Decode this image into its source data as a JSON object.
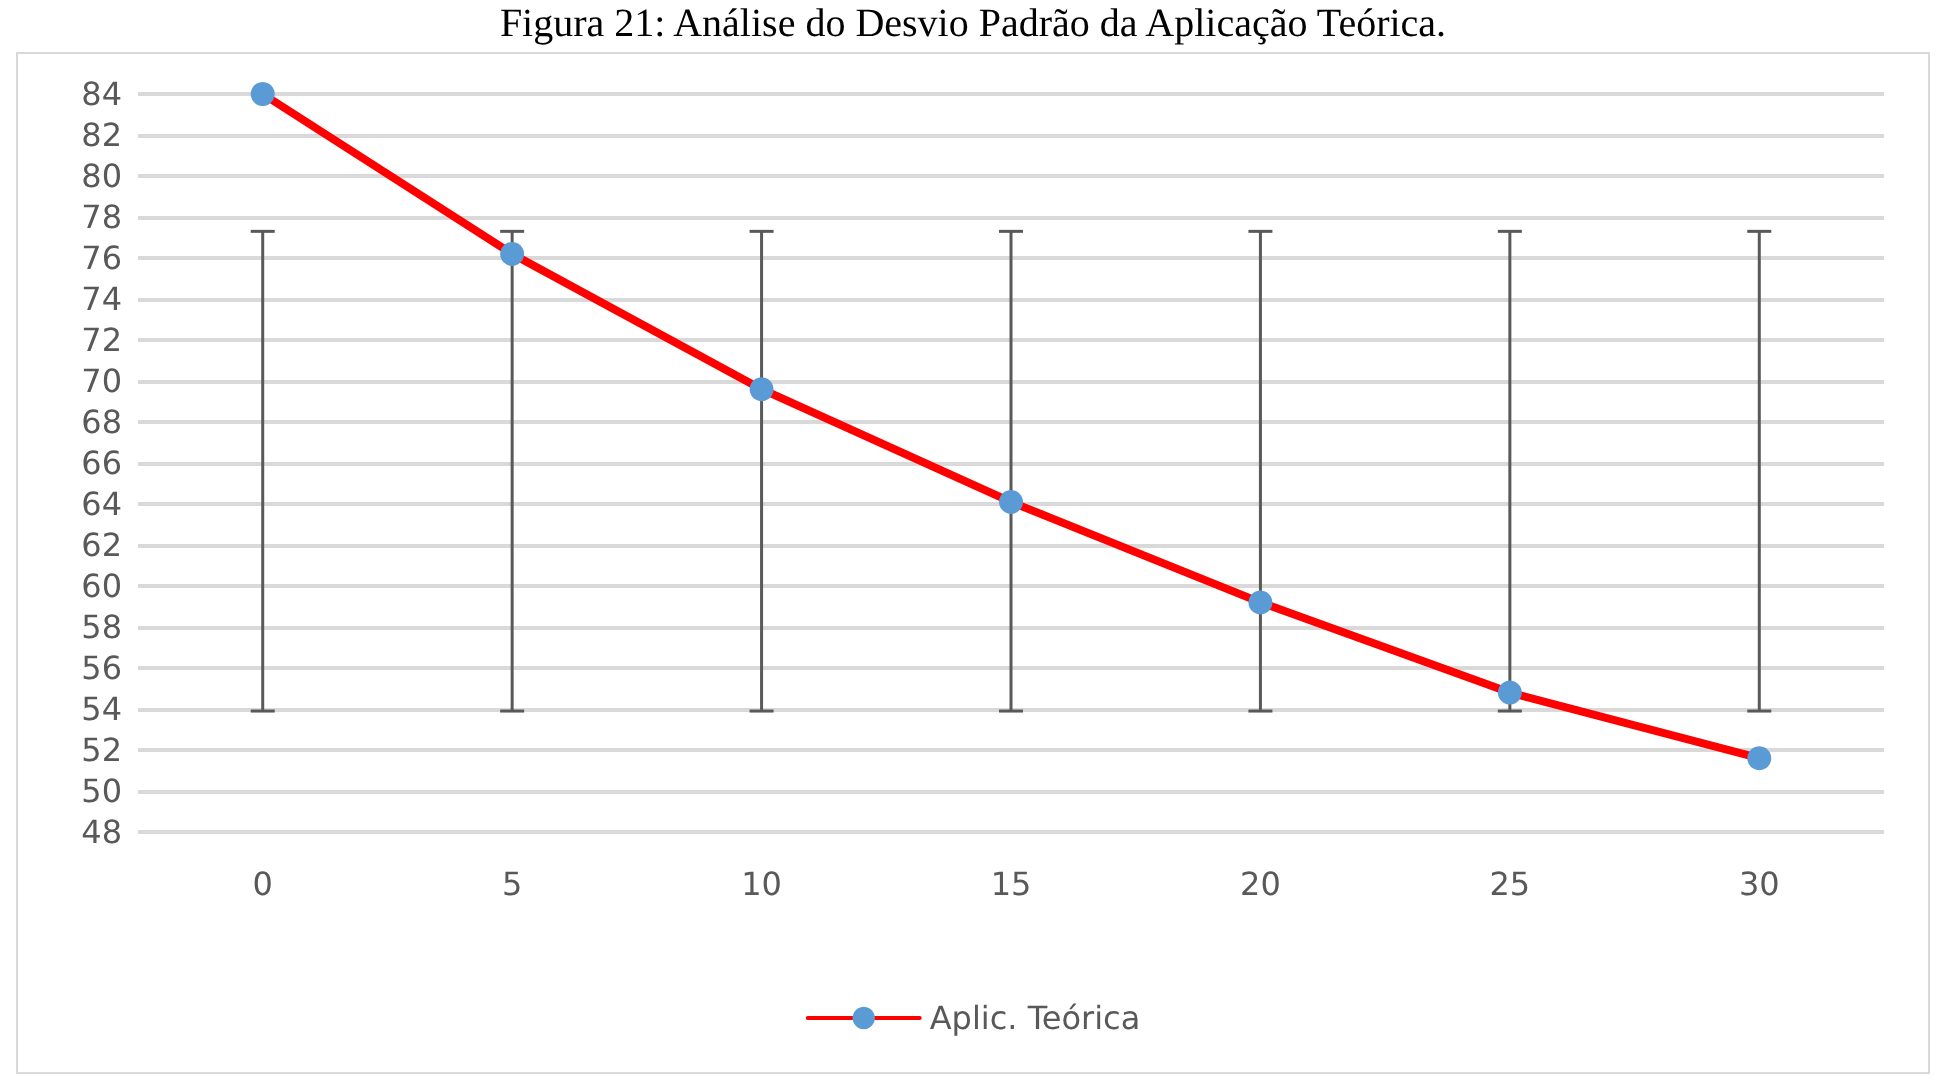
{
  "chart_data": {
    "type": "line",
    "title": "Figura 21: Análise do Desvio Padrão da Aplicação Teórica.",
    "categories": [
      "0",
      "5",
      "10",
      "15",
      "20",
      "25",
      "30"
    ],
    "series": [
      {
        "name": "Aplic. Teórica",
        "color": "#ff0000",
        "colors": [
          "#5b9bd5",
          "#5b9bd5",
          "#5b9bd5",
          "#5b9bd5",
          "#5b9bd5",
          "#5b9bd5",
          "#5b9bd5"
        ],
        "values": [
          84,
          76.2,
          69.6,
          64.1,
          59.2,
          54.8,
          51.6
        ],
        "errors": [
          [
            53.9,
            77.3
          ],
          [
            53.9,
            77.3
          ],
          [
            53.9,
            77.3
          ],
          [
            53.9,
            77.3
          ],
          [
            53.9,
            77.3
          ],
          [
            53.9,
            77.3
          ],
          [
            53.9,
            77.3
          ]
        ]
      }
    ],
    "ylim": [
      48,
      84
    ],
    "yticks": [
      48,
      50,
      52,
      54,
      56,
      58,
      60,
      62,
      64,
      66,
      68,
      70,
      72,
      74,
      76,
      78,
      80,
      82,
      84
    ],
    "grid": "y",
    "legend": "bottom",
    "marker": "circle",
    "line_style": "solid"
  }
}
